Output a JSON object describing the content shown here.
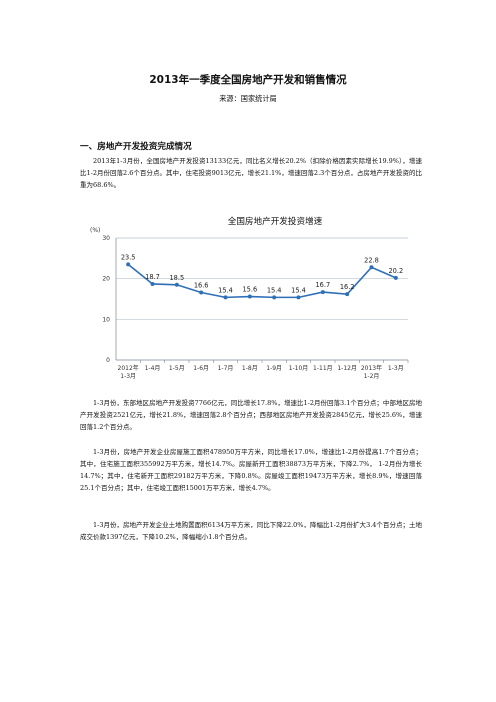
{
  "document": {
    "title": "2013年一季度全国房地产开发和销售情况",
    "source": "来源：国家统计局",
    "section1_heading": "一、房地产开发投资完成情况",
    "paragraphs": [
      "2013年1-3月份，全国房地产开发投资13133亿元，同比名义增长20.2%（扣除价格因素实际增长19.9%），增速比1-2月份回落2.6个百分点。其中，住宅投资9013亿元，增长21.1%，增速回落2.3个百分点，占房地产开发投资的比重为68.6%。",
      "1-3月份，东部地区房地产开发投资7766亿元，同比增长17.8%，增速比1-2月份回落3.1个百分点；中部地区房地产开发投资2521亿元，增长21.8%，增速回落2.8个百分点；西部地区房地产开发投资2845亿元，增长25.6%，增速回落1.2个百分点。",
      "1-3月份，房地产开发企业房屋施工面积478950万平方米，同比增长17.0%，增速比1-2月份提高1.7个百分点；其中，住宅施工面积355992万平方米，增长14.7%。房屋新开工面积38873万平方米，下降2.7%， 1-2月份为增长14.7%；其中，住宅新开工面积29182万平方米，下降0.8%。房屋竣工面积19473万平方米，增长8.9%，增速回落25.1个百分点；其中，住宅竣工面积15001万平方米，增长4.7%。",
      "1-3月份，房地产开发企业土地购置面积6134万平方米，同比下降22.0%，降幅比1-2月份扩大3.4个百分点；土地成交价款1397亿元，下降10.2%，降幅缩小1.8个百分点。"
    ]
  },
  "chart_data": {
    "type": "line",
    "title": "全国房地产开发投资增速",
    "ylabel": "(%)",
    "ylim": [
      0,
      30
    ],
    "yticks": [
      "0",
      "10",
      "20",
      "30"
    ],
    "categories": [
      [
        "2012年",
        "1-3月"
      ],
      [
        "1-4月"
      ],
      [
        "1-5月"
      ],
      [
        "1-6月"
      ],
      [
        "1-7月"
      ],
      [
        "1-8月"
      ],
      [
        "1-9月"
      ],
      [
        "1-10月"
      ],
      [
        "1-11月"
      ],
      [
        "1-12月"
      ],
      [
        "2013年",
        "1-2月"
      ],
      [
        "1-3月"
      ]
    ],
    "values": [
      23.5,
      18.7,
      18.5,
      16.6,
      15.4,
      15.6,
      15.4,
      15.4,
      16.7,
      16.2,
      22.8,
      20.2
    ],
    "data_labels": [
      "23.5",
      "18.7",
      "18.5",
      "16.6",
      "15.4",
      "15.6",
      "15.4",
      "15.4",
      "16.7",
      "16.2",
      "22.8",
      "20.2"
    ],
    "grid": true,
    "line_color": "#2e6fb8",
    "grid_color": "#b9c3cf"
  }
}
